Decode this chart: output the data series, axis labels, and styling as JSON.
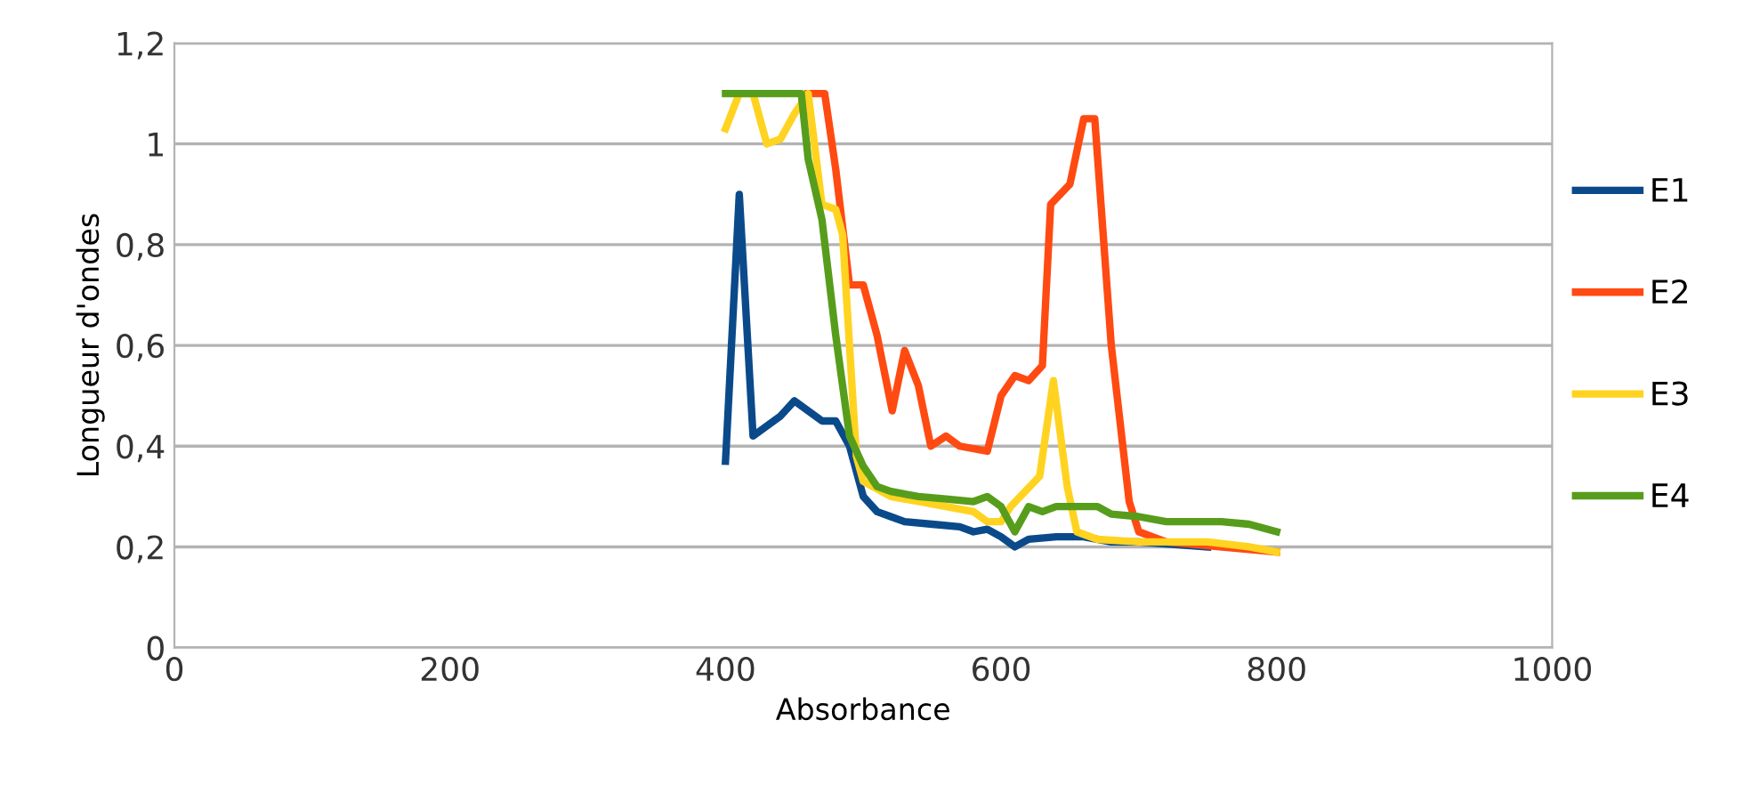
{
  "chart_data": {
    "type": "line",
    "xlabel": "Absorbance",
    "ylabel": "Longueur d'ondes",
    "xlim": [
      0,
      1000
    ],
    "xticks": [
      0,
      200,
      400,
      600,
      800,
      1000
    ],
    "ylim": [
      0,
      1.2
    ],
    "yticks": [
      0,
      {
        "value": 0.2,
        "label": "0,2"
      },
      {
        "value": 0.4,
        "label": "0,4"
      },
      {
        "value": 0.6,
        "label": "0,6"
      },
      {
        "value": 0.8,
        "label": "0,8"
      },
      1,
      {
        "value": 1.2,
        "label": "1,2"
      }
    ],
    "grid": "y",
    "legend": "right",
    "marker": "none",
    "line_style": "solid",
    "series": [
      {
        "name": "E1",
        "color": "#0b4a8a",
        "x": [
          400,
          410,
          420,
          430,
          440,
          450,
          460,
          470,
          480,
          490,
          500,
          510,
          520,
          530,
          550,
          570,
          580,
          590,
          600,
          610,
          620,
          640,
          660,
          680,
          700,
          750
        ],
        "values": [
          0.37,
          0.9,
          0.42,
          0.44,
          0.46,
          0.49,
          0.47,
          0.45,
          0.45,
          0.4,
          0.3,
          0.27,
          0.26,
          0.25,
          0.245,
          0.24,
          0.23,
          0.235,
          0.22,
          0.2,
          0.215,
          0.22,
          0.22,
          0.21,
          0.21,
          0.2
        ]
      },
      {
        "name": "E2",
        "color": "#ff4a12",
        "x": [
          460,
          472,
          480,
          490,
          500,
          510,
          521,
          530,
          540,
          549,
          560,
          570,
          590,
          600,
          610,
          620,
          630,
          636,
          650,
          660,
          668,
          680,
          693,
          700,
          720,
          800
        ],
        "values": [
          1.1,
          1.1,
          0.95,
          0.72,
          0.72,
          0.62,
          0.47,
          0.59,
          0.52,
          0.4,
          0.42,
          0.4,
          0.39,
          0.5,
          0.54,
          0.53,
          0.56,
          0.88,
          0.92,
          1.05,
          1.05,
          0.6,
          0.29,
          0.23,
          0.21,
          0.19
        ]
      },
      {
        "name": "E3",
        "color": "#ffd320",
        "x": [
          400,
          410,
          420,
          430,
          440,
          450,
          460,
          470,
          480,
          485,
          490,
          495,
          500,
          520,
          540,
          560,
          580,
          590,
          600,
          607,
          628,
          638,
          648,
          655,
          670,
          700,
          750,
          780,
          800
        ],
        "values": [
          1.03,
          1.1,
          1.1,
          1.0,
          1.01,
          1.06,
          1.1,
          0.88,
          0.87,
          0.82,
          0.6,
          0.38,
          0.33,
          0.3,
          0.29,
          0.28,
          0.27,
          0.25,
          0.25,
          0.28,
          0.34,
          0.53,
          0.32,
          0.23,
          0.215,
          0.21,
          0.21,
          0.2,
          0.19
        ]
      },
      {
        "name": "E4",
        "color": "#579d1c",
        "x": [
          400,
          455,
          460,
          470,
          480,
          490,
          500,
          510,
          520,
          540,
          560,
          580,
          590,
          600,
          610,
          620,
          630,
          640,
          660,
          670,
          680,
          700,
          720,
          760,
          780,
          800
        ],
        "values": [
          1.1,
          1.1,
          0.97,
          0.85,
          0.62,
          0.42,
          0.36,
          0.32,
          0.31,
          0.3,
          0.295,
          0.29,
          0.3,
          0.28,
          0.23,
          0.28,
          0.27,
          0.28,
          0.28,
          0.28,
          0.265,
          0.26,
          0.25,
          0.25,
          0.245,
          0.23
        ]
      }
    ]
  }
}
